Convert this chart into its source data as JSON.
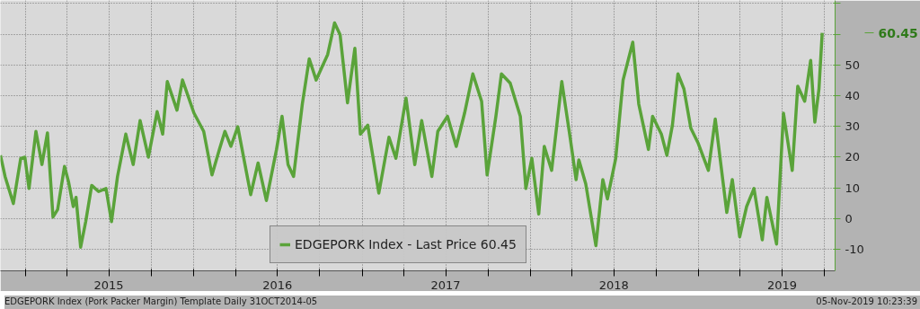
{
  "chart_data": {
    "type": "line",
    "x": [
      "2014-11-08",
      "2014-11-18",
      "2014-11-24",
      "2014-12-06",
      "2014-12-22",
      "2014-12-31",
      "2015-01-09",
      "2015-01-24",
      "2015-02-06",
      "2015-02-18",
      "2015-03-02",
      "2015-03-12",
      "2015-03-27",
      "2015-04-05",
      "2015-04-15",
      "2015-04-21",
      "2015-05-01",
      "2015-05-12",
      "2015-05-25",
      "2015-06-09",
      "2015-06-25",
      "2015-07-07",
      "2015-07-20",
      "2015-08-07",
      "2015-08-23",
      "2015-09-07",
      "2015-09-25",
      "2015-10-14",
      "2015-10-26",
      "2015-11-05",
      "2015-11-26",
      "2015-12-08",
      "2016-01-02",
      "2016-01-23",
      "2016-02-10",
      "2016-02-26",
      "2016-03-09",
      "2016-03-22",
      "2016-04-06",
      "2016-05-04",
      "2016-05-20",
      "2016-06-07",
      "2016-06-29",
      "2016-07-11",
      "2016-07-24",
      "2016-08-05",
      "2016-08-24",
      "2016-09-08",
      "2016-09-23",
      "2016-10-18",
      "2016-11-02",
      "2016-11-14",
      "2016-11-30",
      "2016-12-16",
      "2016-12-28",
      "2017-01-13",
      "2017-02-06",
      "2017-02-28",
      "2017-03-15",
      "2017-04-06",
      "2017-04-25",
      "2017-05-10",
      "2017-06-01",
      "2017-06-14",
      "2017-07-05",
      "2017-07-24",
      "2017-08-11",
      "2017-08-29",
      "2017-09-17",
      "2017-09-29",
      "2017-10-18",
      "2017-10-30",
      "2017-11-18",
      "2017-12-10",
      "2017-12-22",
      "2018-01-04",
      "2018-01-19",
      "2018-01-31",
      "2018-02-16",
      "2018-03-10",
      "2018-03-28",
      "2018-04-10",
      "2018-04-16",
      "2018-05-01",
      "2018-05-23",
      "2018-06-07",
      "2018-06-17",
      "2018-07-05",
      "2018-07-21",
      "2018-08-11",
      "2018-08-24",
      "2018-09-14",
      "2018-09-23",
      "2018-10-12",
      "2018-10-24",
      "2018-11-05",
      "2018-11-17",
      "2018-11-30",
      "2018-12-15",
      "2018-12-31",
      "2019-01-22",
      "2019-02-06",
      "2019-03-03",
      "2019-03-15",
      "2019-03-31",
      "2019-04-15",
      "2019-05-01",
      "2019-05-19",
      "2019-05-29",
      "2019-06-19",
      "2019-07-04",
      "2019-07-23",
      "2019-08-04",
      "2019-08-19",
      "2019-09-01",
      "2019-09-10",
      "2019-09-19",
      "2019-09-26"
    ],
    "series": [
      {
        "name": "EDGEPORK Index - Last Price 60.45",
        "color": "#5aa33a",
        "values": [
          20.6,
          13.7,
          10.8,
          4.9,
          19.6,
          20,
          9.8,
          28.4,
          17.6,
          27.9,
          0.5,
          2.9,
          17,
          11.8,
          3.9,
          6.9,
          -9.3,
          -1,
          10.8,
          8.8,
          9.8,
          -1,
          13.7,
          27.5,
          17.6,
          31.9,
          20,
          34.8,
          27.5,
          44.6,
          35.3,
          45.1,
          34.3,
          28.4,
          14.2,
          22.5,
          28.4,
          23.5,
          29.9,
          7.8,
          18.1,
          5.9,
          22.5,
          33.3,
          17.6,
          13.7,
          37.3,
          52,
          45.1,
          53.4,
          63.7,
          59.8,
          37.7,
          55.4,
          27.5,
          30.4,
          8.3,
          26.5,
          19.6,
          39.2,
          17.6,
          31.9,
          13.7,
          28.4,
          33.3,
          23.5,
          34.3,
          47.1,
          38.2,
          14.2,
          33.3,
          47.1,
          44.1,
          33.3,
          9.8,
          19.6,
          1.5,
          23.5,
          15.7,
          44.6,
          26.5,
          12.7,
          19.1,
          11.3,
          -8.8,
          12.7,
          6.4,
          19.6,
          45.1,
          57.4,
          37.3,
          22.5,
          33.3,
          27.5,
          20.6,
          30.4,
          47.1,
          42.2,
          29.4,
          24.5,
          15.7,
          32.4,
          2,
          12.7,
          -5.9,
          3.9,
          9.8,
          -6.9,
          6.9,
          -8.3,
          34.3,
          15.7,
          43.1,
          38.2,
          51.5,
          31.4,
          42.2,
          60.45
        ]
      }
    ],
    "xlim": [
      "2014-11-08",
      "2019-10-24"
    ],
    "xticks": [
      {
        "value": "2015-01-01",
        "label": null
      },
      {
        "value": "2015-04-01",
        "label": null
      },
      {
        "value": "2015-07-01",
        "label": "2015"
      },
      {
        "value": "2015-10-01",
        "label": null
      },
      {
        "value": "2016-01-01",
        "label": null
      },
      {
        "value": "2016-04-01",
        "label": null
      },
      {
        "value": "2016-07-01",
        "label": "2016"
      },
      {
        "value": "2016-10-01",
        "label": null
      },
      {
        "value": "2017-01-01",
        "label": null
      },
      {
        "value": "2017-04-01",
        "label": null
      },
      {
        "value": "2017-07-01",
        "label": "2017"
      },
      {
        "value": "2017-10-01",
        "label": null
      },
      {
        "value": "2018-01-01",
        "label": null
      },
      {
        "value": "2018-04-01",
        "label": null
      },
      {
        "value": "2018-07-01",
        "label": "2018"
      },
      {
        "value": "2018-10-01",
        "label": null
      },
      {
        "value": "2019-01-01",
        "label": null
      },
      {
        "value": "2019-04-01",
        "label": null
      },
      {
        "value": "2019-07-01",
        "label": "2019"
      },
      {
        "value": "2019-10-01",
        "label": null
      }
    ],
    "ylim": [
      -17,
      71
    ],
    "yticks": [
      -10,
      0,
      10,
      20,
      30,
      40,
      50,
      {
        "value": 60,
        "label": null
      },
      {
        "value": 70,
        "label": null
      }
    ],
    "grid": true,
    "legend": "bottom",
    "marker": "none",
    "line_style": "solid",
    "annotations": [
      "60.45",
      "EDGEPORK Index (Pork Packer Margin) Template  Daily 31OCT2014-05",
      "05-Nov-2019 10:23:39"
    ]
  }
}
